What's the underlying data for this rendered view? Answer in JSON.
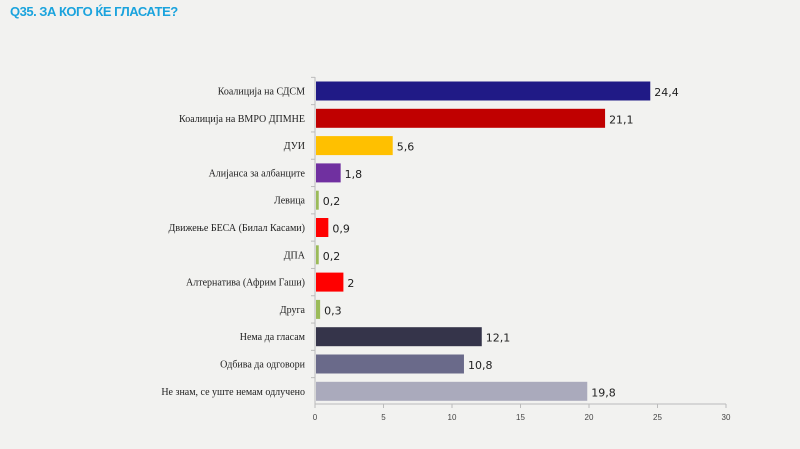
{
  "chart_data": {
    "type": "bar",
    "orientation": "horizontal",
    "title": "Q35. ЗА КОГО ЌЕ ГЛАСАТЕ?",
    "categories": [
      "Коалиција на СДСМ",
      "Коалиција на ВМРО ДПМНЕ",
      "ДУИ",
      "Алијанса за албанците",
      "Левица",
      "Движење БЕСА (Билал Касами)",
      "ДПА",
      "Алтернатива (Африм Гаши)",
      "Друга",
      "Нема да гласам",
      "Одбива да одговори",
      "Не знам, се уште немам одлучено"
    ],
    "values": [
      24.4,
      21.1,
      5.6,
      1.8,
      0.2,
      0.9,
      0.2,
      2,
      0.3,
      12.1,
      10.8,
      19.8
    ],
    "value_labels": [
      "24,4",
      "21,1",
      "5,6",
      "1,8",
      "0,2",
      "0,9",
      "0,2",
      "2",
      "0,3",
      "12,1",
      "10,8",
      "19,8"
    ],
    "colors": [
      "#201a86",
      "#c00000",
      "#ffc000",
      "#7030a0",
      "#9bbb59",
      "#ff0000",
      "#9bbb59",
      "#ff0000",
      "#9bbb59",
      "#35344a",
      "#6a6a8a",
      "#aaaabc"
    ],
    "xlim": [
      0,
      30
    ],
    "xticks": [
      0,
      5,
      10,
      15,
      20,
      25,
      30
    ],
    "xlabel": "",
    "ylabel": "",
    "grid": false,
    "legend": "none"
  },
  "header": {
    "title": "Q35. ЗА КОГО ЌЕ ГЛАСАТЕ?"
  }
}
